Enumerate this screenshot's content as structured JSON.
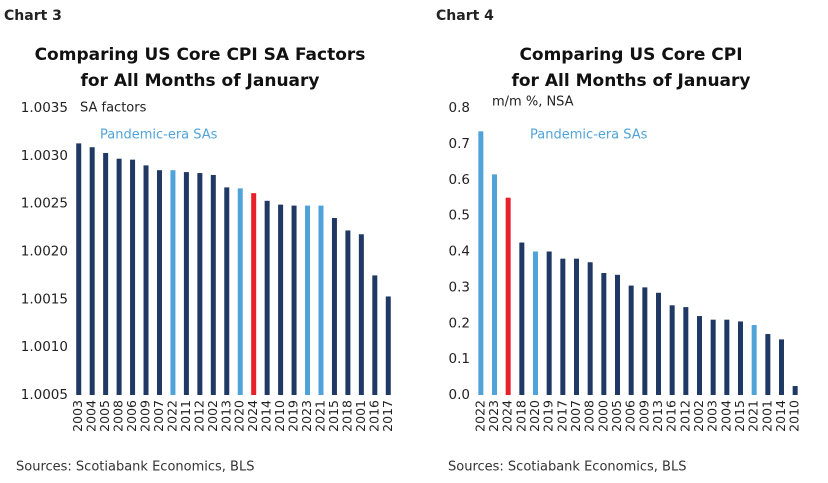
{
  "chart_data": [
    {
      "type": "bar",
      "chart_label": "Chart 3",
      "title": [
        "Comparing US Core CPI SA Factors",
        "for All Months of January"
      ],
      "y_label": "SA factors",
      "annotation": "Pandemic-era SAs",
      "annotation_color": "#4fa3d9",
      "source": "Sources: Scotiabank Economics, BLS",
      "categories": [
        "2003",
        "2004",
        "2005",
        "2008",
        "2006",
        "2009",
        "2007",
        "2022",
        "2011",
        "2012",
        "2002",
        "2013",
        "2020",
        "2024",
        "2014",
        "2010",
        "2019",
        "2023",
        "2021",
        "2015",
        "2018",
        "2001",
        "2016",
        "2017"
      ],
      "values": [
        1.00313,
        1.00309,
        1.00303,
        1.00297,
        1.00296,
        1.0029,
        1.00285,
        1.00285,
        1.00283,
        1.00282,
        1.0028,
        1.00267,
        1.00266,
        1.00261,
        1.00253,
        1.00249,
        1.00248,
        1.00248,
        1.00248,
        1.00235,
        1.00222,
        1.00218,
        1.00175,
        1.00153
      ],
      "colors": [
        "#1f3864",
        "#1f3864",
        "#1f3864",
        "#1f3864",
        "#1f3864",
        "#1f3864",
        "#1f3864",
        "#4fa3d9",
        "#1f3864",
        "#1f3864",
        "#1f3864",
        "#1f3864",
        "#4fa3d9",
        "#e8202a",
        "#1f3864",
        "#1f3864",
        "#1f3864",
        "#4fa3d9",
        "#4fa3d9",
        "#1f3864",
        "#1f3864",
        "#1f3864",
        "#1f3864",
        "#1f3864"
      ],
      "ylim": [
        1.0005,
        1.0035
      ],
      "yticks": [
        1.0035,
        {
          "value": 1.003,
          "label": "1.0030"
        },
        1.0025,
        {
          "value": 1.002,
          "label": "1.0020"
        },
        1.0015,
        {
          "value": 1.001,
          "label": "1.0010"
        },
        1.0005
      ]
    },
    {
      "type": "bar",
      "chart_label": "Chart 4",
      "title": [
        "Comparing US Core CPI",
        "for All Months of January"
      ],
      "y_label": "m/m %, NSA",
      "annotation": "Pandemic-era SAs",
      "annotation_color": "#4fa3d9",
      "source": "Sources: Scotiabank Economics, BLS",
      "categories": [
        "2022",
        "2023",
        "2024",
        "2018",
        "2020",
        "2019",
        "2017",
        "2007",
        "2008",
        "2000",
        "2005",
        "2006",
        "2009",
        "2013",
        "2016",
        "2012",
        "2002",
        "2003",
        "2004",
        "2015",
        "2021",
        "2001",
        "2014",
        "2010"
      ],
      "values": [
        0.735,
        0.615,
        0.55,
        0.425,
        0.4,
        0.4,
        0.38,
        0.38,
        0.37,
        0.34,
        0.335,
        0.305,
        0.3,
        0.285,
        0.25,
        0.245,
        0.22,
        0.21,
        0.21,
        0.205,
        0.195,
        0.17,
        0.155,
        0.025
      ],
      "colors": [
        "#4fa3d9",
        "#4fa3d9",
        "#e8202a",
        "#1f3864",
        "#4fa3d9",
        "#1f3864",
        "#1f3864",
        "#1f3864",
        "#1f3864",
        "#1f3864",
        "#1f3864",
        "#1f3864",
        "#1f3864",
        "#1f3864",
        "#1f3864",
        "#1f3864",
        "#1f3864",
        "#1f3864",
        "#1f3864",
        "#1f3864",
        "#4fa3d9",
        "#1f3864",
        "#1f3864",
        "#1f3864"
      ],
      "ylim": [
        0,
        0.8
      ],
      "yticks": [
        {
          "value": 0,
          "label": "0.0"
        },
        0.1,
        0.2,
        0.3,
        0.4,
        0.5,
        0.6,
        0.7,
        0.8
      ]
    }
  ]
}
